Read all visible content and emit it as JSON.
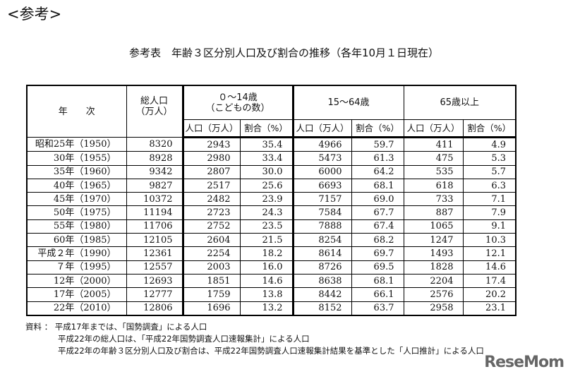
{
  "heading": "<参考>",
  "title": "参考表　年齢３区分別人口及び割合の推移（各年10月１日現在）",
  "header": {
    "year": "年　　次",
    "total": "総人口\n（万人）",
    "total_line1": "総人口",
    "total_line2": "（万人）",
    "group1_line1": "０～14歳",
    "group1_line2": "（こどもの数）",
    "group2": "15～64歳",
    "group3": "65歳以上",
    "pop": "人口（万人）",
    "ratio": "割合（%）"
  },
  "rows": [
    [
      "昭和25年（1950）",
      "8320",
      "2943",
      "35.4",
      "4966",
      "59.7",
      "411",
      "4.9"
    ],
    [
      "30年（1955）",
      "8928",
      "2980",
      "33.4",
      "5473",
      "61.3",
      "475",
      "5.3"
    ],
    [
      "35年（1960）",
      "9342",
      "2807",
      "30.0",
      "6000",
      "64.2",
      "535",
      "5.7"
    ],
    [
      "40年（1965）",
      "9827",
      "2517",
      "25.6",
      "6693",
      "68.1",
      "618",
      "6.3"
    ],
    [
      "45年（1970）",
      "10372",
      "2482",
      "23.9",
      "7157",
      "69.0",
      "733",
      "7.1"
    ],
    [
      "50年（1975）",
      "11194",
      "2723",
      "24.3",
      "7584",
      "67.7",
      "887",
      "7.9"
    ],
    [
      "55年（1980）",
      "11706",
      "2752",
      "23.5",
      "7888",
      "67.4",
      "1065",
      "9.1"
    ],
    [
      "60年（1985）",
      "12105",
      "2604",
      "21.5",
      "8254",
      "68.2",
      "1247",
      "10.3"
    ],
    [
      "平成２年（1990）",
      "12361",
      "2254",
      "18.2",
      "8614",
      "69.7",
      "1493",
      "12.1"
    ],
    [
      "７年（1995）",
      "12557",
      "2003",
      "16.0",
      "8726",
      "69.5",
      "1828",
      "14.6"
    ],
    [
      "12年（2000）",
      "12693",
      "1851",
      "14.6",
      "8638",
      "68.1",
      "2204",
      "17.4"
    ],
    [
      "17年（2005）",
      "12777",
      "1759",
      "13.8",
      "8442",
      "66.1",
      "2576",
      "20.2"
    ],
    [
      "22年（2010）",
      "12806",
      "1696",
      "13.2",
      "8152",
      "63.7",
      "2958",
      "23.1"
    ]
  ],
  "notes": [
    "資料 ： 平成17年までは、「国勢調査」による人口",
    "平成22年の総人口は、「平成22年国勢調査人口速報集計」による人口",
    "平成22年の年齢３区分別人口及び割合は、平成22年国勢調査人口速報集計結果を基準とした「人口推計」による人口"
  ],
  "logo": "ReseMom"
}
